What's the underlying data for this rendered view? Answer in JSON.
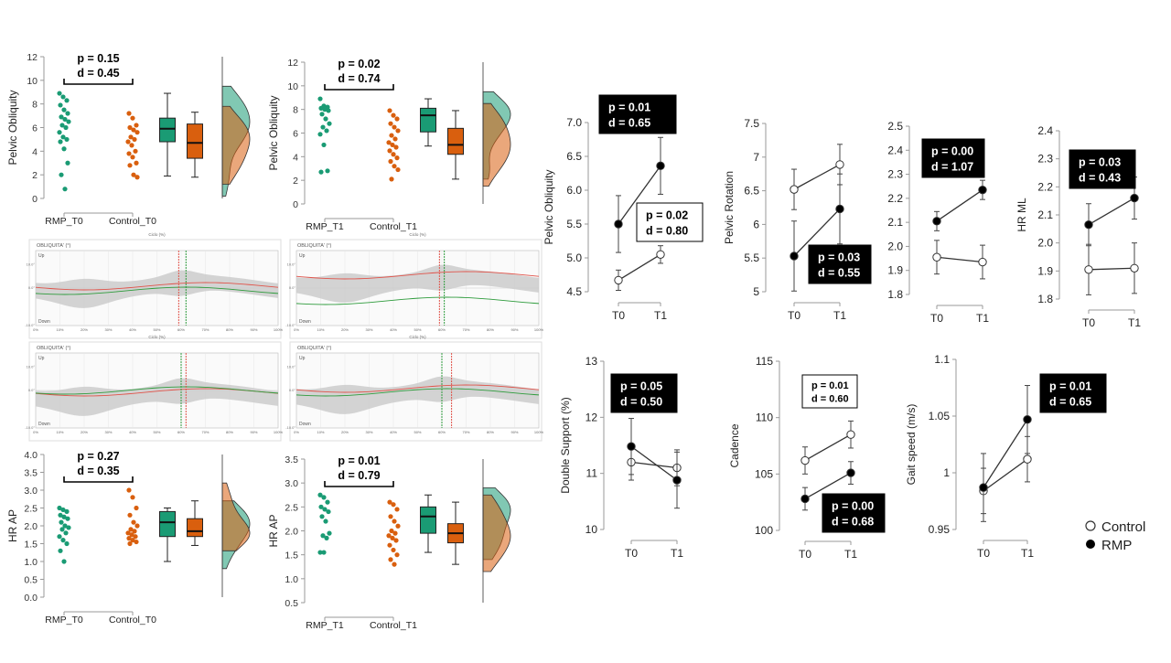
{
  "colors": {
    "rmp": "#1a9b74",
    "control": "#d95f0e",
    "black": "#000000",
    "grey": "#a8a8a8",
    "red": "#e0534a",
    "green": "#2e9b3c"
  },
  "raincloud": [
    {
      "title": "",
      "ylabel": "Pelvic Obliquity",
      "ylim": [
        0,
        12
      ],
      "ticks": [
        0,
        2,
        4,
        6,
        8,
        10,
        12
      ],
      "p": "p = 0.15",
      "d": "d = 0.45",
      "categories": [
        "RMP_T0",
        "Control_T0"
      ],
      "rmp": [
        8.9,
        8.6,
        8.3,
        7.9,
        7.5,
        7.2,
        6.9,
        6.7,
        6.5,
        6.2,
        6.0,
        5.6,
        5.2,
        5.0,
        4.8,
        4.2,
        3.0,
        2.0,
        0.8
      ],
      "control": [
        7.2,
        6.8,
        6.2,
        6.0,
        5.8,
        5.6,
        5.2,
        5.0,
        4.8,
        4.5,
        4.0,
        3.8,
        3.5,
        3.0,
        2.8,
        2.0,
        1.8
      ],
      "box_rmp": {
        "min": 1.9,
        "q1": 4.8,
        "median": 5.9,
        "q3": 6.8,
        "max": 8.9
      },
      "box_control": {
        "min": 1.8,
        "q1": 3.4,
        "median": 4.7,
        "q3": 6.3,
        "max": 7.3
      }
    },
    {
      "title": "",
      "ylabel": "Pelvic Obliquity",
      "ylim": [
        0,
        12
      ],
      "ticks": [
        0,
        2,
        4,
        6,
        8,
        10,
        12
      ],
      "p": "p = 0.02",
      "d": "d = 0.74",
      "categories": [
        "RMP_T1",
        "Control_T1"
      ],
      "rmp": [
        8.9,
        8.3,
        8.2,
        8.1,
        8.0,
        7.9,
        7.6,
        7.2,
        6.8,
        6.5,
        6.2,
        5.9,
        5.0,
        2.8,
        2.7
      ],
      "control": [
        7.9,
        7.5,
        7.2,
        6.8,
        6.5,
        6.2,
        5.8,
        5.5,
        5.2,
        5.0,
        4.8,
        4.5,
        4.2,
        3.9,
        3.6,
        3.2,
        2.9,
        2.1
      ],
      "box_rmp": {
        "min": 4.9,
        "q1": 6.1,
        "median": 7.5,
        "q3": 8.1,
        "max": 8.9
      },
      "box_control": {
        "min": 2.1,
        "q1": 4.2,
        "median": 5.0,
        "q3": 6.4,
        "max": 7.9
      }
    },
    {
      "title": "",
      "ylabel": "HR AP",
      "ylim": [
        0,
        4
      ],
      "ticks": [
        "0.0",
        "0.5",
        "1.0",
        "1.5",
        "2.0",
        "2.5",
        "3.0",
        "3.5",
        "4.0"
      ],
      "p": "p = 0.27",
      "d": "d = 0.35",
      "categories": [
        "RMP_T0",
        "Control_T0"
      ],
      "rmp": [
        2.5,
        2.45,
        2.4,
        2.3,
        2.25,
        2.2,
        2.1,
        2.0,
        1.95,
        1.9,
        1.8,
        1.7,
        1.6,
        1.5,
        1.3,
        1.0
      ],
      "control": [
        3.0,
        2.8,
        2.5,
        2.3,
        2.1,
        2.0,
        1.9,
        1.85,
        1.8,
        1.75,
        1.7,
        1.65,
        1.6,
        1.55,
        1.5
      ],
      "box_rmp": {
        "min": 1.0,
        "q1": 1.7,
        "median": 2.1,
        "q3": 2.4,
        "max": 2.5
      },
      "box_control": {
        "min": 1.45,
        "q1": 1.7,
        "median": 1.85,
        "q3": 2.2,
        "max": 2.7
      }
    },
    {
      "title": "",
      "ylabel": "HR AP",
      "ylim": [
        0.5,
        3.5
      ],
      "ticks": [
        "0.5",
        "1.0",
        "1.5",
        "2.0",
        "2.5",
        "3.0",
        "3.5"
      ],
      "p": "p = 0.01",
      "d": "d = 0.79",
      "categories": [
        "RMP_T1",
        "Control_T1"
      ],
      "rmp": [
        2.75,
        2.7,
        2.6,
        2.5,
        2.45,
        2.4,
        2.3,
        2.2,
        1.95,
        1.9,
        1.85,
        1.55,
        1.55
      ],
      "control": [
        2.6,
        2.55,
        2.45,
        2.3,
        2.2,
        2.1,
        2.0,
        1.95,
        1.9,
        1.85,
        1.8,
        1.7,
        1.6,
        1.5,
        1.4,
        1.3
      ],
      "box_rmp": {
        "min": 1.55,
        "q1": 1.95,
        "median": 2.3,
        "q3": 2.5,
        "max": 2.75
      },
      "box_control": {
        "min": 1.3,
        "q1": 1.75,
        "median": 1.95,
        "q3": 2.15,
        "max": 2.6
      }
    }
  ],
  "gait_panels": [
    {
      "header": "OBLIQUITA' (°)",
      "up": "Up",
      "down": "Down",
      "xlabel": "Ciclo (%)",
      "xticks": [
        "0%",
        "10%",
        "20%",
        "30%",
        "40%",
        "50%",
        "60%",
        "70%",
        "80%",
        "90%",
        "100%"
      ],
      "ytop": "10.0°",
      "ymid": "0.0°",
      "ybot": "-10.0°",
      "red_line": 59,
      "green_line": 62
    },
    {
      "header": "OBLIQUITA' (°)",
      "up": "Up",
      "down": "Down",
      "xlabel": "Ciclo (%)",
      "xticks": [
        "0%",
        "10%",
        "20%",
        "30%",
        "40%",
        "50%",
        "60%",
        "70%",
        "80%",
        "90%",
        "100%"
      ],
      "ytop": "10.0°",
      "ymid": "0.0°",
      "ybot": "-10.0°",
      "red_line": 59,
      "green_line": 61
    },
    {
      "header": "OBLIQUITA' (°)",
      "up": "Up",
      "down": "Down",
      "xlabel": "Ciclo (%)",
      "xticks": [
        "0%",
        "10%",
        "20%",
        "30%",
        "40%",
        "50%",
        "60%",
        "70%",
        "80%",
        "90%",
        "100%"
      ],
      "ytop": "10.0°",
      "ymid": "0.0°",
      "ybot": "-10.0°",
      "red_line": 62,
      "green_line": 60
    },
    {
      "header": "OBLIQUITA' (°)",
      "up": "Up",
      "down": "Down",
      "xlabel": "Ciclo (%)",
      "xticks": [
        "0%",
        "10%",
        "20%",
        "30%",
        "40%",
        "50%",
        "60%",
        "70%",
        "80%",
        "90%",
        "100%"
      ],
      "ytop": "10.0°",
      "ymid": "0.0°",
      "ybot": "-10.0°",
      "red_line": 64,
      "green_line": 60
    }
  ],
  "interaction_plots": [
    {
      "ylabel": "Pelvic Obliquity",
      "ylim": [
        4.5,
        7.0
      ],
      "ticks": [
        "4.5",
        "5.0",
        "5.5",
        "6.0",
        "6.5",
        "7.0"
      ],
      "control": {
        "t0": 4.67,
        "t1": 5.05,
        "e0": 0.15,
        "e1": 0.13
      },
      "rmp": {
        "t0": 5.5,
        "t1": 6.36,
        "e0": 0.42,
        "e1": 0.42
      },
      "stats": [
        {
          "p": "p = 0.01",
          "d": "d = 0.65",
          "style": "black"
        },
        {
          "p": "p = 0.02",
          "d": "d = 0.80",
          "style": "white"
        }
      ]
    },
    {
      "ylabel": "Pelvic Rotation",
      "ylim": [
        5,
        7.5
      ],
      "ticks": [
        "5",
        "5.5",
        "6",
        "6.5",
        "7",
        "7.5"
      ],
      "control": {
        "t0": 6.52,
        "t1": 6.89,
        "e0": 0.3,
        "e1": 0.3
      },
      "rmp": {
        "t0": 5.53,
        "t1": 6.23,
        "e0": 0.52,
        "e1": 0.52
      },
      "stats": [
        {
          "p": "p = 0.03",
          "d": "d = 0.55",
          "style": "black"
        }
      ]
    },
    {
      "ylabel": "",
      "ylim": [
        1.8,
        2.5
      ],
      "ticks": [
        "1.8",
        "1.9",
        "2.0",
        "2.1",
        "2.2",
        "2.3",
        "2.4",
        "2.5"
      ],
      "control": {
        "t0": 1.955,
        "t1": 1.935,
        "e0": 0.07,
        "e1": 0.07
      },
      "rmp": {
        "t0": 2.105,
        "t1": 2.235,
        "e0": 0.04,
        "e1": 0.04
      },
      "stats": [
        {
          "p": "p = 0.00",
          "d": "d = 1.07",
          "style": "black"
        }
      ]
    },
    {
      "ylabel": "HR ML",
      "ylim": [
        1.8,
        2.4
      ],
      "ticks": [
        "1.8",
        "1.9",
        "2.0",
        "2.1",
        "2.2",
        "2.3",
        "2.4"
      ],
      "control": {
        "t0": 1.905,
        "t1": 1.91,
        "e0": 0.09,
        "e1": 0.09
      },
      "rmp": {
        "t0": 2.065,
        "t1": 2.16,
        "e0": 0.075,
        "e1": 0.075
      },
      "stats": [
        {
          "p": "p = 0.03",
          "d": "d = 0.43",
          "style": "black"
        }
      ]
    },
    {
      "ylabel": "Double Support (%)",
      "ylim": [
        10,
        13
      ],
      "ticks": [
        "10",
        "11",
        "12",
        "13"
      ],
      "control": {
        "t0": 11.2,
        "t1": 11.1,
        "e0": 0.32,
        "e1": 0.32
      },
      "rmp": {
        "t0": 11.48,
        "t1": 10.88,
        "e0": 0.5,
        "e1": 0.5
      },
      "stats": [
        {
          "p": "p = 0.05",
          "d": "d = 0.50",
          "style": "black"
        }
      ]
    },
    {
      "ylabel": "Cadence",
      "ylim": [
        100,
        115
      ],
      "ticks": [
        "100",
        "105",
        "110",
        "115"
      ],
      "control": {
        "t0": 106.2,
        "t1": 108.5,
        "e0": 1.2,
        "e1": 1.2
      },
      "rmp": {
        "t0": 102.8,
        "t1": 105.1,
        "e0": 1.0,
        "e1": 1.0
      },
      "stats": [
        {
          "p": "p = 0.01",
          "d": "d = 0.60",
          "style": "white"
        },
        {
          "p": "p = 0.00",
          "d": "d = 0.68",
          "style": "black"
        }
      ]
    },
    {
      "ylabel": "Gait speed (m/s)",
      "ylim": [
        0.95,
        1.1
      ],
      "ticks": [
        "0.95",
        "1",
        "1.05",
        "1.1"
      ],
      "control": {
        "t0": 0.984,
        "t1": 1.012,
        "e0": 0.02,
        "e1": 0.02
      },
      "rmp": {
        "t0": 0.987,
        "t1": 1.047,
        "e0": 0.03,
        "e1": 0.03
      },
      "stats": [
        {
          "p": "p = 0.01",
          "d": "d = 0.65",
          "style": "black"
        }
      ]
    }
  ],
  "time_labels": [
    "T0",
    "T1"
  ],
  "legend": {
    "control": "Control",
    "rmp": "RMP"
  },
  "chart_data": [
    {
      "type": "scatter",
      "ylabel": "Pelvic Obliquity",
      "categories": [
        "RMP_T0",
        "Control_T0"
      ],
      "annotations": [
        "p = 0.15",
        "d = 0.45"
      ]
    },
    {
      "type": "scatter",
      "ylabel": "Pelvic Obliquity",
      "categories": [
        "RMP_T1",
        "Control_T1"
      ],
      "annotations": [
        "p = 0.02",
        "d = 0.74"
      ]
    },
    {
      "type": "scatter",
      "ylabel": "HR AP",
      "categories": [
        "RMP_T0",
        "Control_T0"
      ],
      "annotations": [
        "p = 0.27",
        "d = 0.35"
      ]
    },
    {
      "type": "scatter",
      "ylabel": "HR AP",
      "categories": [
        "RMP_T1",
        "Control_T1"
      ],
      "annotations": [
        "p = 0.01",
        "d = 0.79"
      ]
    },
    {
      "type": "line",
      "ylabel": "Pelvic Obliquity",
      "x": [
        "T0",
        "T1"
      ],
      "series": [
        {
          "name": "Control",
          "values": [
            4.67,
            5.05
          ]
        },
        {
          "name": "RMP",
          "values": [
            5.5,
            6.36
          ]
        }
      ]
    },
    {
      "type": "line",
      "ylabel": "Pelvic Rotation",
      "x": [
        "T0",
        "T1"
      ],
      "series": [
        {
          "name": "Control",
          "values": [
            6.52,
            6.89
          ]
        },
        {
          "name": "RMP",
          "values": [
            5.53,
            6.23
          ]
        }
      ]
    },
    {
      "type": "line",
      "ylabel": "",
      "x": [
        "T0",
        "T1"
      ],
      "series": [
        {
          "name": "Control",
          "values": [
            1.955,
            1.935
          ]
        },
        {
          "name": "RMP",
          "values": [
            2.105,
            2.235
          ]
        }
      ]
    },
    {
      "type": "line",
      "ylabel": "HR ML",
      "x": [
        "T0",
        "T1"
      ],
      "series": [
        {
          "name": "Control",
          "values": [
            1.905,
            1.91
          ]
        },
        {
          "name": "RMP",
          "values": [
            2.065,
            2.16
          ]
        }
      ]
    },
    {
      "type": "line",
      "ylabel": "Double Support (%)",
      "x": [
        "T0",
        "T1"
      ],
      "series": [
        {
          "name": "Control",
          "values": [
            11.2,
            11.1
          ]
        },
        {
          "name": "RMP",
          "values": [
            11.48,
            10.88
          ]
        }
      ]
    },
    {
      "type": "line",
      "ylabel": "Cadence",
      "x": [
        "T0",
        "T1"
      ],
      "series": [
        {
          "name": "Control",
          "values": [
            106.2,
            108.5
          ]
        },
        {
          "name": "RMP",
          "values": [
            102.8,
            105.1
          ]
        }
      ]
    },
    {
      "type": "line",
      "ylabel": "Gait speed (m/s)",
      "x": [
        "T0",
        "T1"
      ],
      "series": [
        {
          "name": "Control",
          "values": [
            0.984,
            1.012
          ]
        },
        {
          "name": "RMP",
          "values": [
            0.987,
            1.047
          ]
        }
      ]
    }
  ]
}
